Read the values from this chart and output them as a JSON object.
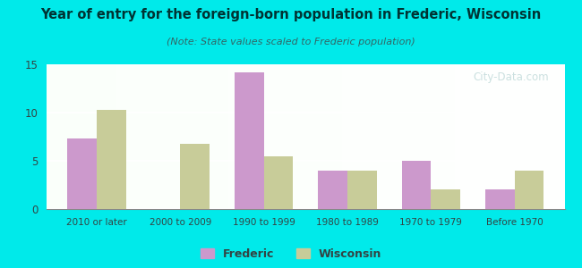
{
  "title": "Year of entry for the foreign-born population in Frederic, Wisconsin",
  "subtitle": "(Note: State values scaled to Frederic population)",
  "categories": [
    "2010 or later",
    "2000 to 2009",
    "1990 to 1999",
    "1980 to 1989",
    "1970 to 1979",
    "Before 1970"
  ],
  "frederic_values": [
    7.3,
    0,
    14.2,
    4.0,
    5.0,
    2.0
  ],
  "wisconsin_values": [
    10.3,
    6.8,
    5.5,
    4.0,
    2.0,
    4.0
  ],
  "frederic_color": "#cc99cc",
  "wisconsin_color": "#c8cc99",
  "background_outer": "#00eaea",
  "ylim": [
    0,
    15
  ],
  "yticks": [
    0,
    5,
    10,
    15
  ],
  "bar_width": 0.35,
  "watermark": "City-Data.com",
  "legend_frederic": "Frederic",
  "legend_wisconsin": "Wisconsin",
  "title_color": "#003333",
  "subtitle_color": "#336666"
}
